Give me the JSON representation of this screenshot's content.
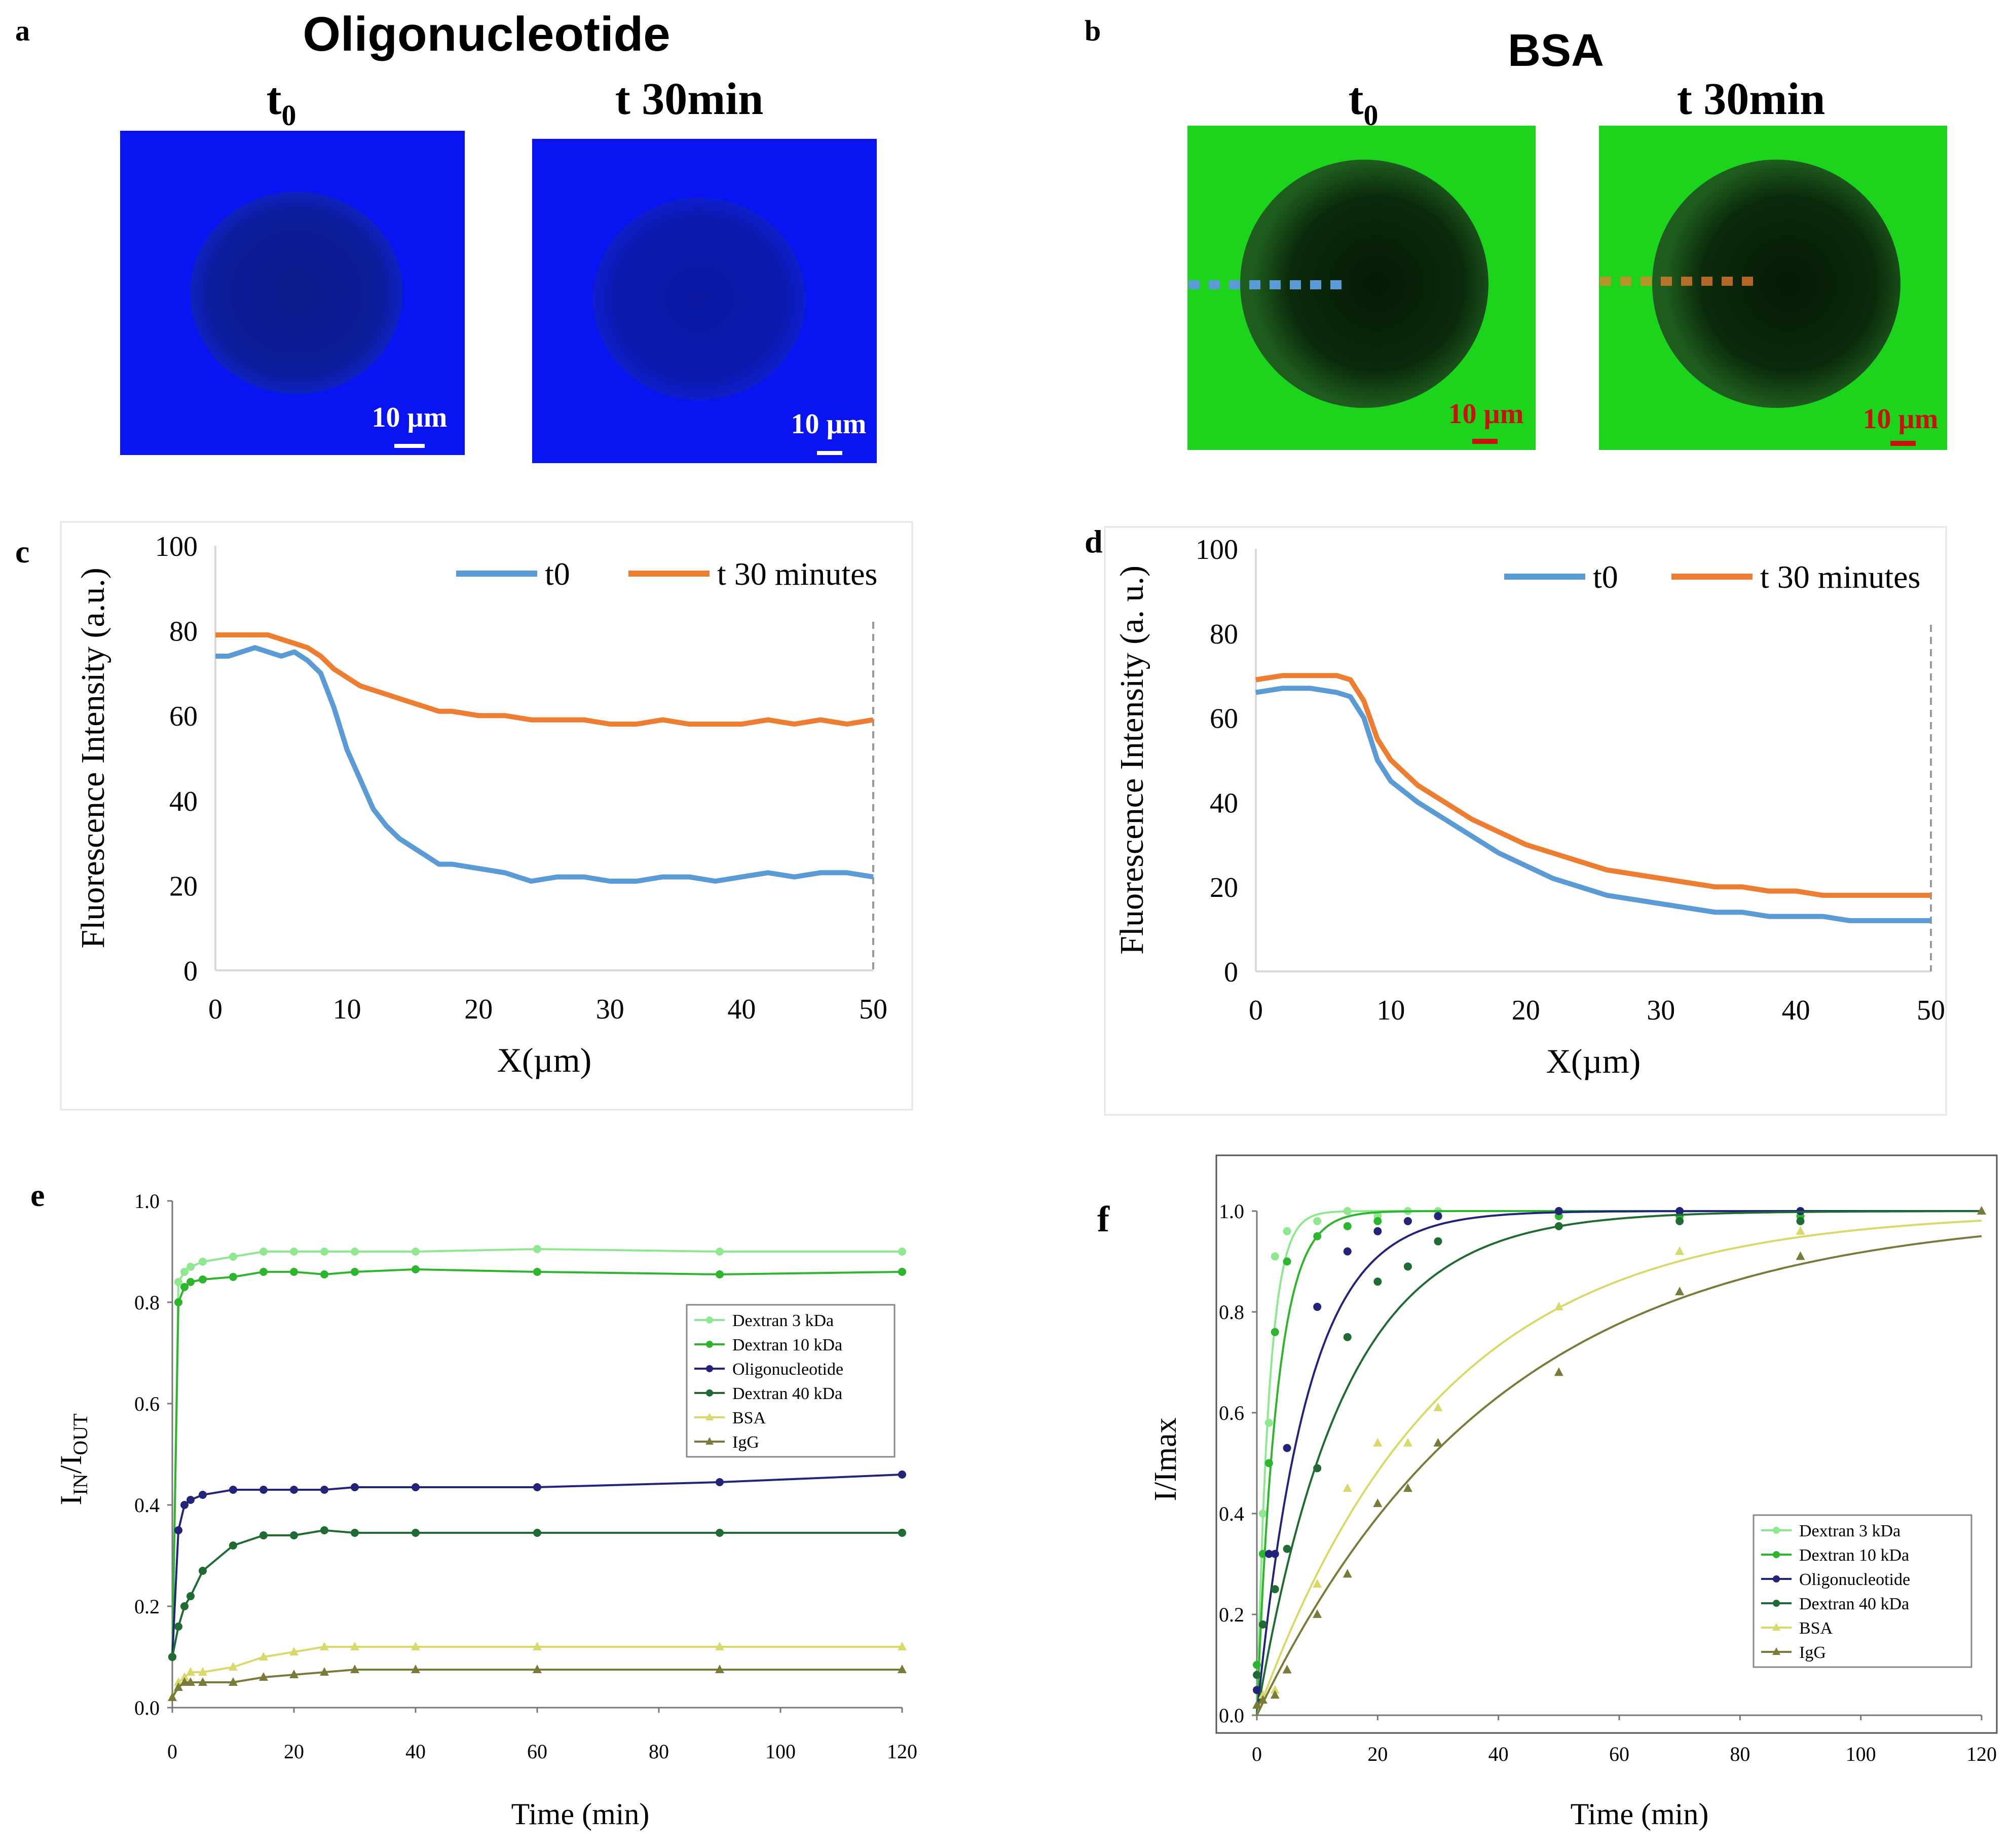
{
  "panel_letters": {
    "a": "a",
    "b": "b",
    "c": "c",
    "d": "d",
    "e": "e",
    "f": "f"
  },
  "panel_a": {
    "title": "Oligonucleotide",
    "t0_base": "t",
    "t0_sub": "0",
    "t30_label": "t 30min",
    "scale_label": "10 µm"
  },
  "panel_b": {
    "title": "BSA",
    "t0_base": "t",
    "t0_sub": "0",
    "t30_label": "t 30min",
    "scale_label": "10 µm"
  },
  "colors": {
    "blue_field": "#0a14f0",
    "blue_dark": "#0c1888",
    "green_field": "#1cd41c",
    "green_dark": "#0a2a0a",
    "t0_line": "#5b9bd5",
    "t30_line": "#ed7d31",
    "dex3": "#8fe88f",
    "dex10": "#2db52d",
    "oligo": "#23237a",
    "dex40": "#1f6b33",
    "bsa": "#d9d96a",
    "igg": "#7a7a3a"
  },
  "chart_data": [
    {
      "id": "c",
      "type": "line",
      "title": "",
      "xlabel": "X(µm)",
      "ylabel": "Fluorescence Intensity (a.u.)",
      "xlim": [
        0,
        50
      ],
      "ylim": [
        0,
        100
      ],
      "xticks": [
        "0",
        "10",
        "20",
        "30",
        "40",
        "50"
      ],
      "yticks": [
        "0",
        "20",
        "40",
        "60",
        "80",
        "100"
      ],
      "legend_position": "top-right",
      "series": [
        {
          "name": "t0",
          "x": [
            0,
            1,
            2,
            3,
            4,
            5,
            6,
            7,
            8,
            9,
            10,
            11,
            12,
            13,
            14,
            15,
            16,
            17,
            18,
            20,
            22,
            24,
            26,
            28,
            30,
            32,
            34,
            36,
            38,
            40,
            42,
            44,
            46,
            48,
            50
          ],
          "values": [
            74,
            74,
            75,
            76,
            75,
            74,
            75,
            73,
            70,
            62,
            52,
            45,
            38,
            34,
            31,
            29,
            27,
            25,
            25,
            24,
            23,
            21,
            22,
            22,
            21,
            21,
            22,
            22,
            21,
            22,
            23,
            22,
            23,
            23,
            22
          ]
        },
        {
          "name": "t 30 minutes",
          "x": [
            0,
            1,
            2,
            3,
            4,
            5,
            6,
            7,
            8,
            9,
            10,
            11,
            12,
            13,
            14,
            15,
            16,
            17,
            18,
            20,
            22,
            24,
            26,
            28,
            30,
            32,
            34,
            36,
            38,
            40,
            42,
            44,
            46,
            48,
            50
          ],
          "values": [
            79,
            79,
            79,
            79,
            79,
            78,
            77,
            76,
            74,
            71,
            69,
            67,
            66,
            65,
            64,
            63,
            62,
            61,
            61,
            60,
            60,
            59,
            59,
            59,
            58,
            58,
            59,
            58,
            58,
            58,
            59,
            58,
            59,
            58,
            59
          ]
        }
      ]
    },
    {
      "id": "d",
      "type": "line",
      "title": "",
      "xlabel": "X(µm)",
      "ylabel": "Fluorescence Intensity (a. u.)",
      "xlim": [
        0,
        50
      ],
      "ylim": [
        0,
        100
      ],
      "xticks": [
        "0",
        "10",
        "20",
        "30",
        "40",
        "50"
      ],
      "yticks": [
        "0",
        "20",
        "40",
        "60",
        "80",
        "100"
      ],
      "legend_position": "top-right",
      "series": [
        {
          "name": "t0",
          "x": [
            0,
            2,
            4,
            6,
            7,
            8,
            9,
            10,
            12,
            14,
            16,
            18,
            20,
            22,
            24,
            26,
            28,
            30,
            32,
            34,
            36,
            38,
            40,
            42,
            44,
            46,
            48,
            50
          ],
          "values": [
            66,
            67,
            67,
            66,
            65,
            60,
            50,
            45,
            40,
            36,
            32,
            28,
            25,
            22,
            20,
            18,
            17,
            16,
            15,
            14,
            14,
            13,
            13,
            13,
            12,
            12,
            12,
            12
          ]
        },
        {
          "name": "t 30 minutes",
          "x": [
            0,
            2,
            4,
            6,
            7,
            8,
            9,
            10,
            12,
            14,
            16,
            18,
            20,
            22,
            24,
            26,
            28,
            30,
            32,
            34,
            36,
            38,
            40,
            42,
            44,
            46,
            48,
            50
          ],
          "values": [
            69,
            70,
            70,
            70,
            69,
            64,
            55,
            50,
            44,
            40,
            36,
            33,
            30,
            28,
            26,
            24,
            23,
            22,
            21,
            20,
            20,
            19,
            19,
            18,
            18,
            18,
            18,
            18
          ]
        }
      ]
    },
    {
      "id": "e",
      "type": "line",
      "title": "",
      "xlabel": "Time (min)",
      "ylabel_base": "I",
      "ylabel_sub1": "IN",
      "ylabel_mid": "/I",
      "ylabel_sub2": "OUT",
      "xlim": [
        0,
        120
      ],
      "ylim": [
        0,
        1.0
      ],
      "xticks": [
        "0",
        "20",
        "40",
        "60",
        "80",
        "100",
        "120"
      ],
      "yticks": [
        "0.0",
        "0.2",
        "0.4",
        "0.6",
        "0.8",
        "1.0"
      ],
      "legend_position": "right",
      "categories_x": [
        0,
        1,
        2,
        3,
        5,
        10,
        15,
        20,
        25,
        30,
        40,
        60,
        90,
        120
      ],
      "series": [
        {
          "name": "Dextran 3 kDa",
          "marker": "circle",
          "values": [
            0.1,
            0.84,
            0.86,
            0.87,
            0.88,
            0.89,
            0.9,
            0.9,
            0.9,
            0.9,
            0.9,
            0.905,
            0.9,
            0.9
          ]
        },
        {
          "name": "Dextran 10 kDa",
          "marker": "circle",
          "values": [
            0.1,
            0.8,
            0.83,
            0.84,
            0.845,
            0.85,
            0.86,
            0.86,
            0.855,
            0.86,
            0.865,
            0.86,
            0.855,
            0.86
          ]
        },
        {
          "name": "Oligonucleotide",
          "marker": "circle",
          "values": [
            0.1,
            0.35,
            0.4,
            0.41,
            0.42,
            0.43,
            0.43,
            0.43,
            0.43,
            0.435,
            0.435,
            0.435,
            0.445,
            0.46
          ]
        },
        {
          "name": "Dextran 40 kDa",
          "marker": "circle",
          "values": [
            0.1,
            0.16,
            0.2,
            0.22,
            0.27,
            0.32,
            0.34,
            0.34,
            0.35,
            0.345,
            0.345,
            0.345,
            0.345,
            0.345
          ]
        },
        {
          "name": "BSA",
          "marker": "triangle",
          "values": [
            0.02,
            0.05,
            0.06,
            0.07,
            0.07,
            0.08,
            0.1,
            0.11,
            0.12,
            0.12,
            0.12,
            0.12,
            0.12,
            0.12
          ]
        },
        {
          "name": "IgG",
          "marker": "triangle",
          "values": [
            0.02,
            0.04,
            0.05,
            0.05,
            0.05,
            0.05,
            0.06,
            0.065,
            0.07,
            0.075,
            0.075,
            0.075,
            0.075,
            0.075
          ]
        }
      ]
    },
    {
      "id": "f",
      "type": "scatter",
      "title": "",
      "xlabel": "Time (min)",
      "ylabel": "I/Imax",
      "xlim": [
        0,
        120
      ],
      "ylim": [
        0,
        1.0
      ],
      "xticks": [
        "0",
        "20",
        "40",
        "60",
        "80",
        "100",
        "120"
      ],
      "yticks": [
        "0.0",
        "0.2",
        "0.4",
        "0.6",
        "0.8",
        "1.0"
      ],
      "legend_position": "bottom-right",
      "series": [
        {
          "name": "Dextran 3 kDa",
          "marker": "circle",
          "fit_k": 0.5,
          "x": [
            0,
            1,
            2,
            3,
            5,
            10,
            15,
            20,
            25,
            30,
            50,
            70,
            90
          ],
          "values": [
            0.1,
            0.4,
            0.58,
            0.91,
            0.96,
            0.98,
            1.0,
            0.99,
            1.0,
            1.0,
            1.0,
            1.0,
            1.0
          ]
        },
        {
          "name": "Dextran 10 kDa",
          "marker": "circle",
          "fit_k": 0.3,
          "x": [
            0,
            1,
            2,
            3,
            5,
            10,
            15,
            20,
            25,
            30,
            50,
            70,
            90
          ],
          "values": [
            0.1,
            0.32,
            0.5,
            0.76,
            0.9,
            0.95,
            0.97,
            0.98,
            0.98,
            0.99,
            0.99,
            0.99,
            0.99
          ]
        },
        {
          "name": "Oligonucleotide",
          "marker": "circle",
          "fit_k": 0.12,
          "x": [
            0,
            2,
            3,
            5,
            10,
            15,
            20,
            25,
            30,
            50,
            70,
            90
          ],
          "values": [
            0.05,
            0.32,
            0.32,
            0.53,
            0.81,
            0.92,
            0.96,
            0.98,
            0.99,
            1.0,
            1.0,
            1.0
          ]
        },
        {
          "name": "Dextran 40 kDa",
          "marker": "circle",
          "fit_k": 0.07,
          "x": [
            0,
            1,
            3,
            5,
            10,
            15,
            20,
            25,
            30,
            50,
            70,
            90
          ],
          "values": [
            0.08,
            0.18,
            0.25,
            0.33,
            0.49,
            0.75,
            0.86,
            0.89,
            0.94,
            0.97,
            0.98,
            0.98
          ]
        },
        {
          "name": "BSA",
          "marker": "triangle",
          "fit_k": 0.033,
          "x": [
            0,
            1,
            3,
            5,
            10,
            15,
            20,
            25,
            30,
            50,
            70,
            90,
            120
          ],
          "values": [
            0.02,
            0.04,
            0.05,
            0.09,
            0.26,
            0.45,
            0.54,
            0.54,
            0.61,
            0.81,
            0.92,
            0.96,
            1.0
          ]
        },
        {
          "name": "IgG",
          "marker": "triangle",
          "fit_k": 0.025,
          "x": [
            0,
            1,
            3,
            5,
            10,
            15,
            20,
            25,
            30,
            50,
            70,
            90,
            120
          ],
          "values": [
            0.02,
            0.03,
            0.04,
            0.09,
            0.2,
            0.28,
            0.42,
            0.45,
            0.54,
            0.68,
            0.84,
            0.91,
            1.0
          ]
        }
      ]
    }
  ]
}
